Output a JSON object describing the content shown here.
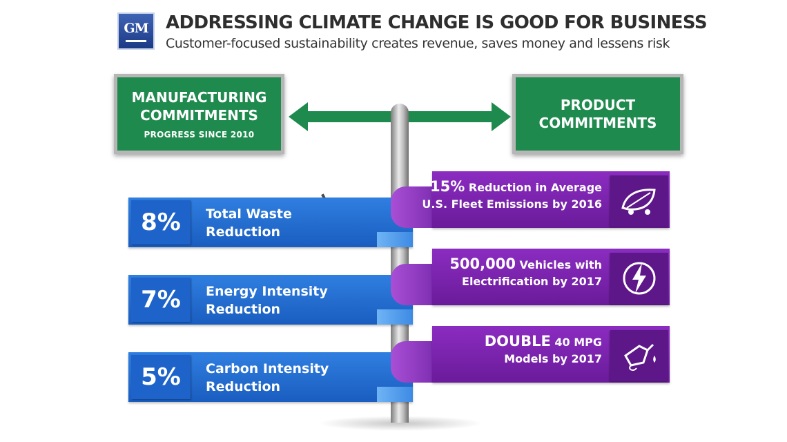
{
  "header": {
    "logo_text": "GM",
    "title": "ADDRESSING CLIMATE CHANGE IS GOOD FOR BUSINESS",
    "subtitle": "Customer-focused sustainability creates revenue, saves money and lessens risk"
  },
  "signs": {
    "manufacturing": {
      "line1": "MANUFACTURING",
      "line2": "COMMITMENTS",
      "sub": "PROGRESS SINCE 2010"
    },
    "product": {
      "line1": "PRODUCT",
      "line2": "COMMITMENTS"
    }
  },
  "manufacturing_items": [
    {
      "pct": "8%",
      "line1": "Total Waste",
      "line2": "Reduction"
    },
    {
      "pct": "7%",
      "line1": "Energy Intensity",
      "line2": "Reduction"
    },
    {
      "pct": "5%",
      "line1": "Carbon Intensity",
      "line2": "Reduction"
    }
  ],
  "product_items": [
    {
      "big": "15%",
      "rest": " Reduction in Average",
      "line2": "U.S. Fleet Emissions by 2016",
      "icon": "leaf-car-icon"
    },
    {
      "big": "500,000",
      "rest": " Vehicles with",
      "line2": "Electrification by 2017",
      "icon": "electric-plug-icon"
    },
    {
      "big": "DOUBLE",
      "rest": " 40 MPG",
      "line2": "Models by 2017",
      "icon": "fuel-nozzle-icon"
    }
  ],
  "colors": {
    "sign_green": "#1f8a4e",
    "ribbon_blue": "#1a5dc0",
    "ribbon_purple": "#6a1b9a",
    "logo_blue": "#1c3b86"
  }
}
